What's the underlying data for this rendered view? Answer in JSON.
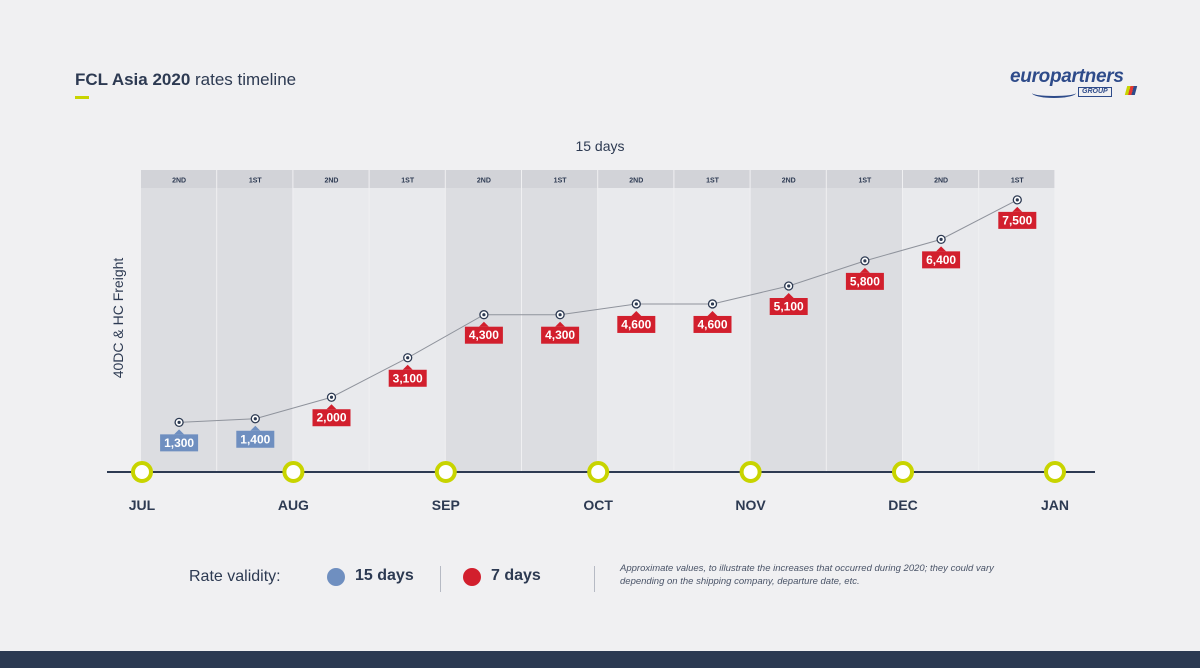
{
  "header": {
    "title_bold": "FCL Asia 2020",
    "title_rest": " rates timeline",
    "logo_text": "europartners",
    "logo_group": "GROUP"
  },
  "period_label": "15 days",
  "colors": {
    "blue_label": "#6f8fc0",
    "red_label": "#d21f2d",
    "band_dark": "#dcdde1",
    "band_light": "#e9eaed",
    "header_cell": "#d2d3d8",
    "axis": "#2d3a52",
    "marker_ring": "#c8d400",
    "line": "#8f939c"
  },
  "chart_data": {
    "type": "line",
    "title": "FCL Asia 2020 rates timeline",
    "ylabel": "40DC & HC Freight",
    "half_month_labels": [
      "2ND",
      "1ST",
      "2ND",
      "1ST",
      "2ND",
      "1ST",
      "2ND",
      "1ST",
      "2ND",
      "1ST",
      "2ND",
      "1ST"
    ],
    "months": [
      "JUL",
      "AUG",
      "SEP",
      "OCT",
      "NOV",
      "DEC",
      "JAN"
    ],
    "ylim": [
      0,
      8500
    ],
    "series": [
      {
        "values": [
          1300,
          1400,
          2000,
          3100,
          4300,
          4300,
          4600,
          4600,
          5100,
          5800,
          6400,
          7500
        ],
        "labels": [
          "1,300",
          "1,400",
          "2,000",
          "3,100",
          "4,300",
          "4,300",
          "4,600",
          "4,600",
          "5,100",
          "5,800",
          "6,400",
          "7,500"
        ],
        "validity": [
          "15",
          "15",
          "7",
          "7",
          "7",
          "7",
          "7",
          "7",
          "7",
          "7",
          "7",
          "7"
        ]
      }
    ]
  },
  "legend": {
    "title": "Rate validity:",
    "items": [
      {
        "label": "15 days",
        "color": "#6f8fc0"
      },
      {
        "label": "7 days",
        "color": "#d21f2d"
      }
    ]
  },
  "note": "Approximate values, to illustrate the increases that occurred during 2020; they could vary depending on the shipping company, departure date, etc."
}
